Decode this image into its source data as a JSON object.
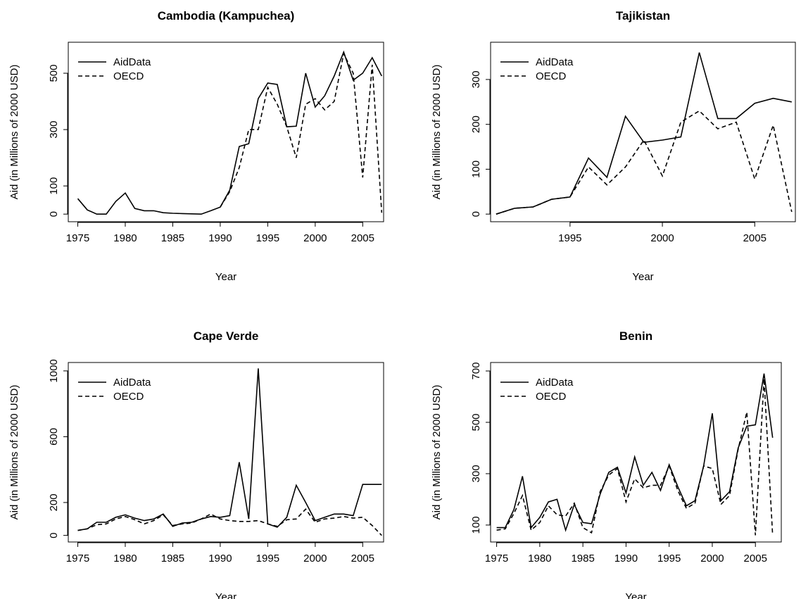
{
  "chart_data": [
    {
      "type": "line",
      "title": "Cambodia (Kampuchea)",
      "x_label": "Year",
      "y_label": "Aid (in Millions of 2000 USD)",
      "x": [
        1975,
        1976,
        1977,
        1978,
        1979,
        1980,
        1981,
        1982,
        1983,
        1984,
        1985,
        1986,
        1987,
        1988,
        1989,
        1990,
        1991,
        1992,
        1993,
        1994,
        1995,
        1996,
        1997,
        1998,
        1999,
        2000,
        2001,
        2002,
        2003,
        2004,
        2005,
        2006,
        2007
      ],
      "xlim": [
        1974,
        2007.2
      ],
      "xticks": [
        1975,
        1980,
        1985,
        1990,
        1995,
        2000,
        2005
      ],
      "ylim": [
        -27,
        610
      ],
      "yticks": [
        0,
        100,
        300,
        500
      ],
      "legend": "top-left",
      "series": [
        {
          "name": "AidData",
          "color": "#000000",
          "line_style": "solid",
          "values": [
            55,
            15,
            0,
            0,
            45,
            75,
            20,
            12,
            12,
            5,
            3,
            2,
            1,
            0,
            12,
            25,
            85,
            240,
            250,
            410,
            465,
            460,
            310,
            312,
            500,
            380,
            420,
            490,
            575,
            475,
            500,
            555,
            490
          ]
        },
        {
          "name": "OECD",
          "color": "#000000",
          "line_style": "dashed",
          "values": [
            null,
            null,
            null,
            null,
            null,
            null,
            null,
            null,
            null,
            null,
            null,
            null,
            null,
            null,
            null,
            25,
            80,
            165,
            300,
            300,
            450,
            390,
            310,
            200,
            390,
            410,
            370,
            400,
            570,
            500,
            130,
            530,
            5
          ]
        }
      ]
    },
    {
      "type": "line",
      "title": "Tajikistan",
      "x_label": "Year",
      "y_label": "Aid (in Millions of 2000 USD)",
      "x": [
        1991,
        1992,
        1993,
        1994,
        1995,
        1996,
        1997,
        1998,
        1999,
        2000,
        2001,
        2002,
        2003,
        2004,
        2005,
        2006,
        2007
      ],
      "xlim": [
        1990.7,
        2007.2
      ],
      "xticks": [
        1995,
        2000,
        2005
      ],
      "ylim": [
        -17,
        383
      ],
      "yticks": [
        0,
        100,
        200,
        300
      ],
      "legend": "top-left",
      "series": [
        {
          "name": "AidData",
          "color": "#000000",
          "line_style": "solid",
          "values": [
            0,
            13,
            16,
            33,
            38,
            125,
            82,
            218,
            160,
            165,
            172,
            360,
            213,
            213,
            247,
            258,
            250
          ]
        },
        {
          "name": "OECD",
          "color": "#000000",
          "line_style": "dashed",
          "values": [
            0,
            13,
            16,
            33,
            38,
            105,
            65,
            105,
            165,
            85,
            205,
            230,
            190,
            205,
            78,
            198,
            5
          ]
        }
      ]
    },
    {
      "type": "line",
      "title": "Cape Verde",
      "x_label": "Year",
      "y_label": "Aid (in Millions of 2000 USD)",
      "x": [
        1975,
        1976,
        1977,
        1978,
        1979,
        1980,
        1981,
        1982,
        1983,
        1984,
        1985,
        1986,
        1987,
        1988,
        1989,
        1990,
        1991,
        1992,
        1993,
        1994,
        1995,
        1996,
        1997,
        1998,
        1999,
        2000,
        2001,
        2002,
        2003,
        2004,
        2005,
        2006,
        2007
      ],
      "xlim": [
        1974,
        2007.2
      ],
      "xticks": [
        1975,
        1980,
        1985,
        1990,
        1995,
        2000,
        2005
      ],
      "ylim": [
        -40,
        1051
      ],
      "yticks": [
        0,
        200,
        600,
        1000
      ],
      "legend": "top-left",
      "series": [
        {
          "name": "AidData",
          "color": "#000000",
          "line_style": "solid",
          "values": [
            30,
            40,
            80,
            80,
            110,
            125,
            105,
            90,
            100,
            130,
            55,
            75,
            80,
            100,
            115,
            110,
            120,
            445,
            100,
            1015,
            70,
            50,
            110,
            305,
            200,
            90,
            110,
            130,
            130,
            120,
            310,
            310,
            310
          ]
        },
        {
          "name": "OECD",
          "color": "#000000",
          "line_style": "dashed",
          "values": [
            30,
            40,
            65,
            70,
            100,
            115,
            95,
            70,
            90,
            125,
            60,
            70,
            75,
            100,
            130,
            100,
            90,
            85,
            85,
            90,
            70,
            55,
            95,
            100,
            160,
            80,
            100,
            105,
            115,
            105,
            110,
            60,
            0
          ]
        }
      ]
    },
    {
      "type": "line",
      "title": "Benin",
      "x_label": "Year",
      "y_label": "Aid (in Millions of 2000 USD)",
      "x": [
        1975,
        1976,
        1977,
        1978,
        1979,
        1980,
        1981,
        1982,
        1983,
        1984,
        1985,
        1986,
        1987,
        1988,
        1989,
        1990,
        1991,
        1992,
        1993,
        1994,
        1995,
        1996,
        1997,
        1998,
        1999,
        2000,
        2001,
        2002,
        2003,
        2004,
        2005,
        2006,
        2007
      ],
      "xlim": [
        1974.3,
        2008
      ],
      "xticks": [
        1975,
        1980,
        1985,
        1990,
        1995,
        2000,
        2005
      ],
      "ylim": [
        34,
        733
      ],
      "yticks": [
        100,
        300,
        500,
        700
      ],
      "legend": "top-left",
      "series": [
        {
          "name": "AidData",
          "color": "#000000",
          "line_style": "solid",
          "values": [
            90,
            90,
            160,
            290,
            90,
            130,
            190,
            200,
            80,
            180,
            110,
            105,
            220,
            305,
            325,
            225,
            365,
            255,
            305,
            235,
            335,
            250,
            175,
            195,
            330,
            535,
            195,
            230,
            400,
            485,
            490,
            690,
            440
          ]
        },
        {
          "name": "OECD",
          "color": "#000000",
          "line_style": "dashed",
          "values": [
            80,
            85,
            145,
            215,
            80,
            110,
            175,
            140,
            135,
            185,
            90,
            70,
            230,
            295,
            320,
            190,
            280,
            245,
            255,
            255,
            330,
            235,
            165,
            185,
            330,
            320,
            180,
            215,
            395,
            540,
            60,
            670,
            60
          ]
        }
      ]
    }
  ]
}
